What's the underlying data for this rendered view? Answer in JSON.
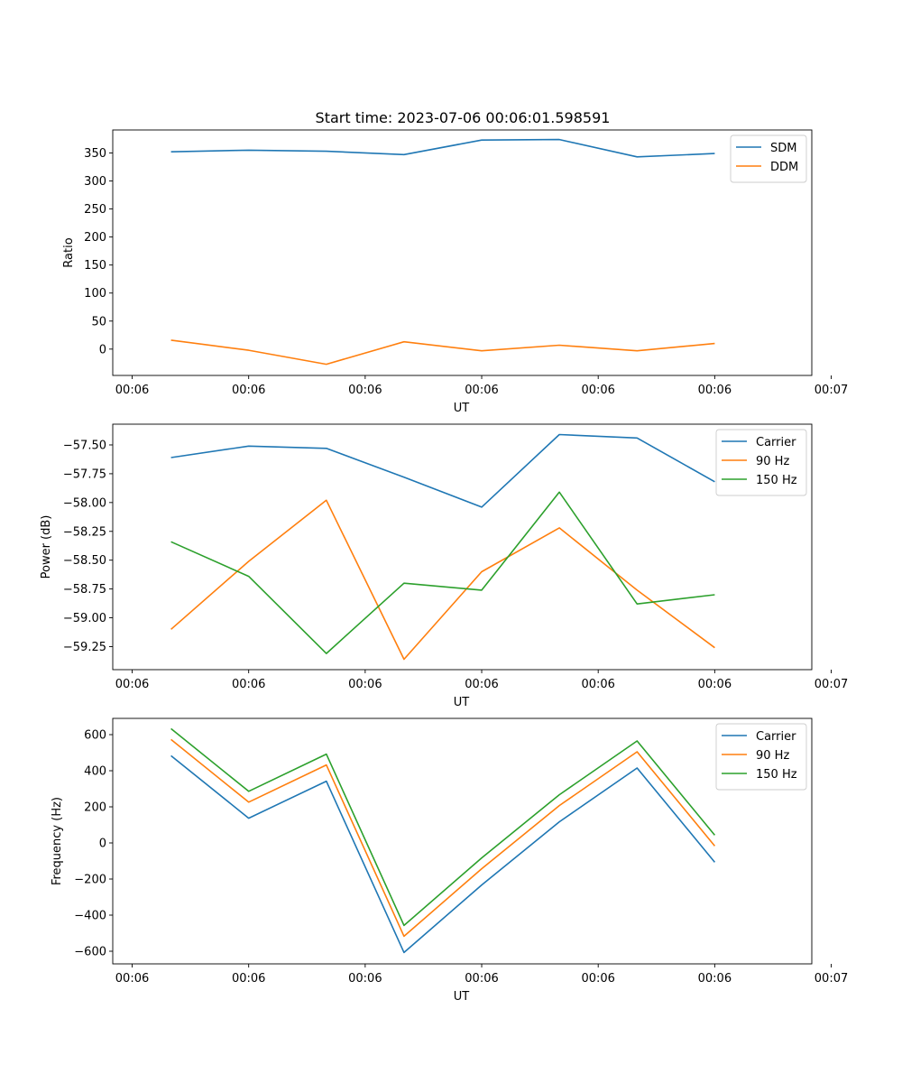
{
  "title": "Start time: 2023-07-06 00:06:01.598591",
  "colors": {
    "series_1": "#1f77b4",
    "series_2": "#ff7f0e",
    "series_3": "#2ca02c"
  },
  "chart_data": [
    {
      "type": "line",
      "title": "",
      "xlabel": "UT",
      "ylabel": "Ratio",
      "x": [
        1,
        2,
        3,
        4,
        5,
        6,
        7,
        8
      ],
      "xlim": [
        0.25,
        9.25
      ],
      "xticks": [
        0.5,
        2,
        3.5,
        5,
        6.5,
        8,
        9.5
      ],
      "xtick_labels": [
        "00:06",
        "00:06",
        "00:06",
        "00:06",
        "00:06",
        "00:06",
        "00:07"
      ],
      "ylim": [
        -47,
        391
      ],
      "yticks": [
        0,
        50,
        100,
        150,
        200,
        250,
        300,
        350
      ],
      "ytick_labels": [
        "0",
        "50",
        "100",
        "150",
        "200",
        "250",
        "300",
        "350"
      ],
      "legend_position": "top-right",
      "series": [
        {
          "name": "SDM",
          "color_key": "series_1",
          "values": [
            352,
            355,
            353,
            347,
            373,
            374,
            343,
            349
          ]
        },
        {
          "name": "DDM",
          "color_key": "series_2",
          "values": [
            16,
            -2,
            -27,
            13,
            -3,
            7,
            -3,
            10
          ]
        }
      ]
    },
    {
      "type": "line",
      "title": "",
      "xlabel": "UT",
      "ylabel": "Power (dB)",
      "x": [
        1,
        2,
        3,
        4,
        5,
        6,
        7,
        8
      ],
      "xlim": [
        0.25,
        9.25
      ],
      "xticks": [
        0.5,
        2,
        3.5,
        5,
        6.5,
        8,
        9.5
      ],
      "xtick_labels": [
        "00:06",
        "00:06",
        "00:06",
        "00:06",
        "00:06",
        "00:06",
        "00:07"
      ],
      "ylim": [
        -59.45,
        -57.32
      ],
      "yticks": [
        -59.25,
        -59.0,
        -58.75,
        -58.5,
        -58.25,
        -58.0,
        -57.75,
        -57.5
      ],
      "ytick_labels": [
        "−59.25",
        "−59.00",
        "−58.75",
        "−58.50",
        "−58.25",
        "−58.00",
        "−57.75",
        "−57.50"
      ],
      "legend_position": "top-right",
      "series": [
        {
          "name": "Carrier",
          "color_key": "series_1",
          "values": [
            -57.61,
            -57.51,
            -57.53,
            -57.78,
            -58.04,
            -57.41,
            -57.44,
            -57.82
          ]
        },
        {
          "name": "90 Hz",
          "color_key": "series_2",
          "values": [
            -59.1,
            -58.51,
            -57.98,
            -59.36,
            -58.6,
            -58.22,
            -58.76,
            -59.26
          ]
        },
        {
          "name": "150 Hz",
          "color_key": "series_3",
          "values": [
            -58.34,
            -58.64,
            -59.31,
            -58.7,
            -58.76,
            -57.91,
            -58.88,
            -58.8
          ]
        }
      ]
    },
    {
      "type": "line",
      "title": "",
      "xlabel": "UT",
      "ylabel": "Frequency (Hz)",
      "x": [
        1,
        2,
        3,
        4,
        5,
        6,
        7,
        8
      ],
      "xlim": [
        0.25,
        9.25
      ],
      "xticks": [
        0.5,
        2,
        3.5,
        5,
        6.5,
        8,
        9.5
      ],
      "xtick_labels": [
        "00:06",
        "00:06",
        "00:06",
        "00:06",
        "00:06",
        "00:06",
        "00:07"
      ],
      "ylim": [
        -670,
        690
      ],
      "yticks": [
        -600,
        -400,
        -200,
        0,
        200,
        400,
        600
      ],
      "ytick_labels": [
        "−600",
        "−400",
        "−200",
        "0",
        "200",
        "400",
        "600"
      ],
      "legend_position": "top-right",
      "series": [
        {
          "name": "Carrier",
          "color_key": "series_1",
          "values": [
            483,
            137,
            342,
            -607,
            -233,
            117,
            415,
            -107
          ]
        },
        {
          "name": "90 Hz",
          "color_key": "series_2",
          "values": [
            573,
            226,
            432,
            -517,
            -143,
            207,
            505,
            -17
          ]
        },
        {
          "name": "150 Hz",
          "color_key": "series_3",
          "values": [
            633,
            286,
            492,
            -457,
            -83,
            267,
            565,
            43
          ]
        }
      ]
    }
  ]
}
